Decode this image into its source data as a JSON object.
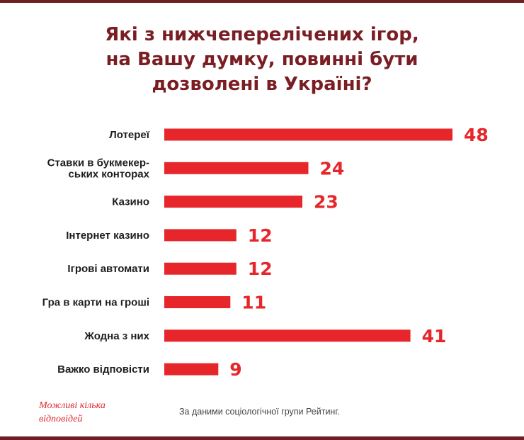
{
  "title_lines": [
    "Які з нижчеперелічених ігор,",
    "на Вашу думку, повинні бути",
    "дозволені в Україні?"
  ],
  "note_lines": [
    "Можливі кілька",
    "відповідей"
  ],
  "source": "За даними соціологічної групи Рейтинг.",
  "colors": {
    "bar": "#e6262a",
    "title": "#7a1e23",
    "frame": "#6e1f24"
  },
  "chart_data": {
    "type": "bar",
    "orientation": "horizontal",
    "categories": [
      [
        "Лотереї"
      ],
      [
        "Ставки в букмекер-",
        "ських конторах"
      ],
      [
        "Казино"
      ],
      [
        "Інтернет казино"
      ],
      [
        "Ігрові автомати"
      ],
      [
        "Гра в карти на гроші"
      ],
      [
        "Жодна з них"
      ],
      [
        "Важко відповісти"
      ]
    ],
    "values": [
      48,
      24,
      23,
      12,
      12,
      11,
      41,
      9
    ],
    "value_labels": [
      "48",
      "24",
      "23",
      "12",
      "12",
      "11",
      "41",
      "9"
    ],
    "xlim": [
      0,
      48
    ],
    "grid": false,
    "legend": "none"
  }
}
